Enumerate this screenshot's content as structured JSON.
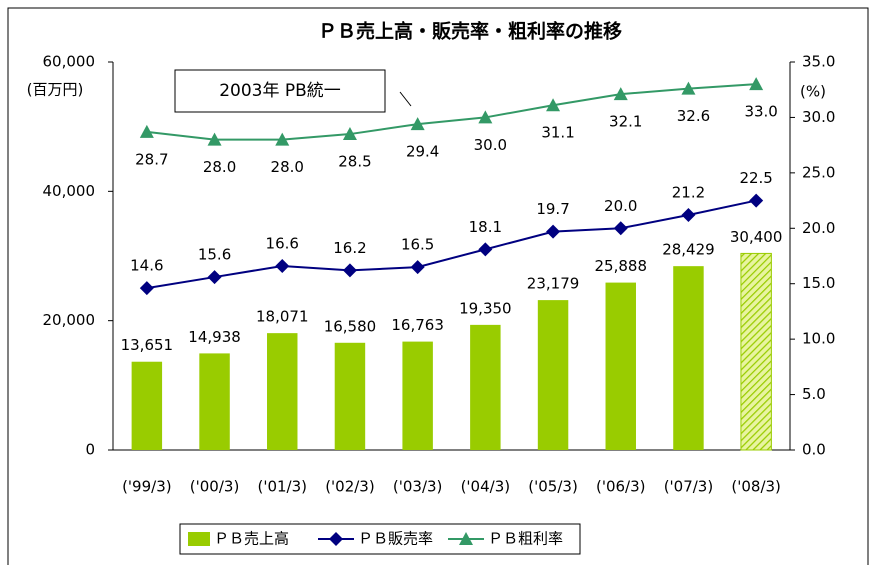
{
  "chart_data": {
    "type": "bar_line",
    "title": "ＰＢ売上高・販売率・粗利率の推移",
    "y_label": "(百万円)",
    "y2_label": "(%)",
    "annotation": "2003年 PB統一",
    "categories": [
      "('99/3)",
      "('00/3)",
      "('01/3)",
      "('02/3)",
      "('03/3)",
      "('04/3)",
      "('05/3)",
      "('06/3)",
      "('07/3)",
      "('08/3)"
    ],
    "series": [
      {
        "name": "ＰＢ売上高",
        "type": "bar",
        "color": "#99cc00",
        "hatched": [
          9
        ],
        "values": [
          13651,
          14938,
          18071,
          16580,
          16763,
          19350,
          23179,
          25888,
          28429,
          30400
        ],
        "value_labels": [
          "13,651",
          "14,938",
          "18,071",
          "16,580",
          "16,763",
          "19,350",
          "23,179",
          "25,888",
          "28,429",
          "30,400"
        ]
      },
      {
        "name": "ＰＢ販売率",
        "type": "line",
        "axis": "y2",
        "color": "#000080",
        "marker": "diamond",
        "values": [
          14.6,
          15.6,
          16.6,
          16.2,
          16.5,
          18.1,
          19.7,
          20.0,
          21.2,
          22.5
        ],
        "value_labels": [
          "14.6",
          "15.6",
          "16.6",
          "16.2",
          "16.5",
          "18.1",
          "19.7",
          "20.0",
          "21.2",
          "22.5"
        ]
      },
      {
        "name": "ＰＢ粗利率",
        "type": "line",
        "axis": "y2",
        "color": "#339966",
        "marker": "triangle",
        "values": [
          28.7,
          28.0,
          28.0,
          28.5,
          29.4,
          30.0,
          31.1,
          32.1,
          32.6,
          33.0
        ],
        "value_labels": [
          "28.7",
          "28.0",
          "28.0",
          "28.5",
          "29.4",
          "30.0",
          "31.1",
          "32.1",
          "32.6",
          "33.0"
        ]
      }
    ],
    "ylim": [
      0,
      60000
    ],
    "yticks": [
      0,
      {
        "value": 20000,
        "label": "20,000"
      },
      {
        "value": 40000,
        "label": "40,000"
      },
      {
        "value": 60000,
        "label": "60,000"
      }
    ],
    "y2lim": [
      0,
      35
    ],
    "y2ticks": [
      {
        "value": 0,
        "label": "0.0"
      },
      {
        "value": 5,
        "label": "5.0"
      },
      {
        "value": 10,
        "label": "10.0"
      },
      {
        "value": 15,
        "label": "15.0"
      },
      {
        "value": 20,
        "label": "20.0"
      },
      {
        "value": 25,
        "label": "25.0"
      },
      {
        "value": 30,
        "label": "30.0"
      },
      {
        "value": 35,
        "label": "35.0"
      }
    ],
    "grid": false,
    "legend": "bottom"
  }
}
